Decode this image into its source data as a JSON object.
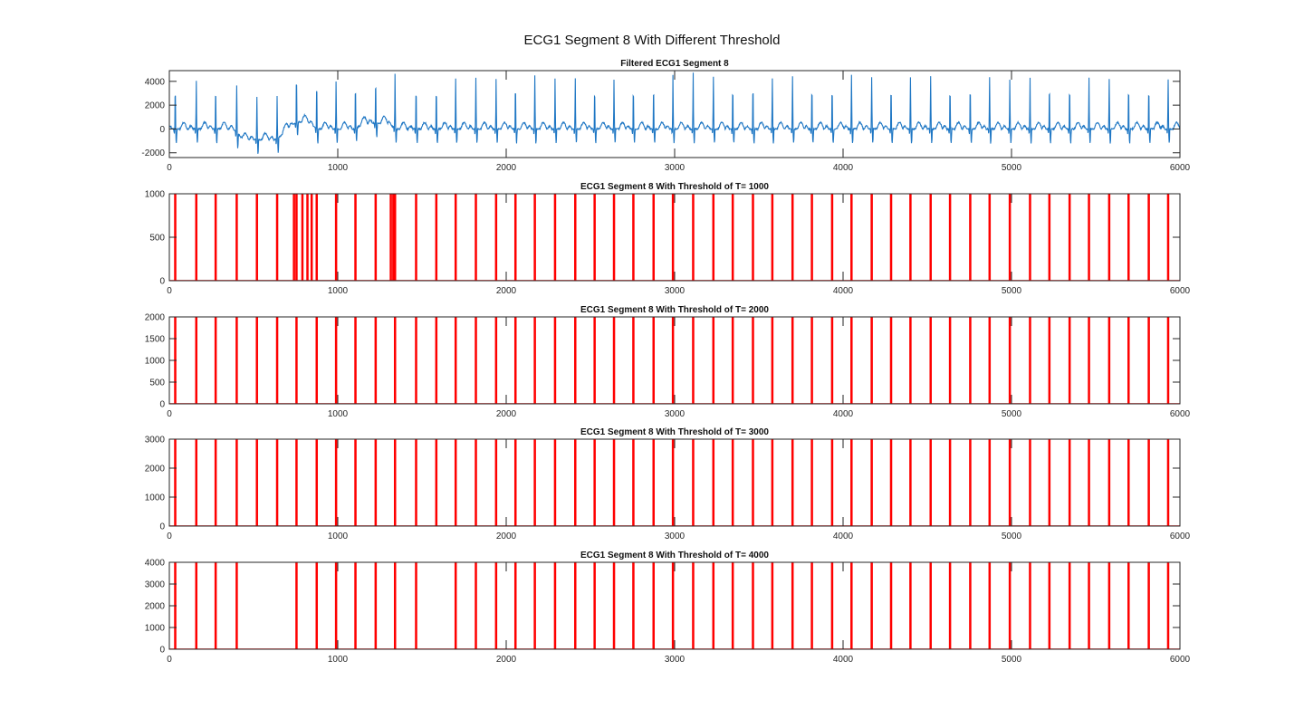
{
  "figure": {
    "title": "ECG1 Segment 8 With Different Threshold",
    "colors": {
      "ecg": "#1f77c4",
      "threshold": "#ff0000",
      "axis": "#262626"
    }
  },
  "chart_data": [
    {
      "type": "line",
      "title": "Filtered ECG1 Segment 8",
      "xlim": [
        0,
        6000
      ],
      "ylim": [
        -2400,
        4900
      ],
      "xticks": [
        0,
        1000,
        2000,
        3000,
        4000,
        5000,
        6000
      ],
      "yticks": [
        -2000,
        0,
        2000,
        4000
      ],
      "series": [
        {
          "color": "#1f77c4",
          "r_peaks_x": [
            35,
            160,
            275,
            400,
            520,
            640,
            755,
            875,
            990,
            1105,
            1225,
            1340,
            1465,
            1585,
            1700,
            1820,
            1940,
            2055,
            2170,
            2290,
            2410,
            2525,
            2640,
            2755,
            2875,
            2990,
            3110,
            3230,
            3345,
            3465,
            3580,
            3700,
            3815,
            3935,
            4050,
            4170,
            4285,
            4400,
            4520,
            4635,
            4755,
            4870,
            4990,
            5110,
            5225,
            5345,
            5460,
            5580,
            5695,
            5815,
            5930
          ],
          "r_peaks_y": [
            4100,
            4000,
            4100,
            4000,
            3600,
            3700,
            4700,
            4600,
            4000,
            4300,
            4300,
            4600,
            4100,
            4100,
            4200,
            4300,
            4200,
            4400,
            4500,
            4200,
            4300,
            4100,
            4200,
            4100,
            4300,
            4600,
            4700,
            4400,
            4200,
            4400,
            4300,
            4400,
            4300,
            4200,
            4500,
            4300,
            4200,
            4300,
            4400,
            4100,
            4300,
            4400,
            4200,
            4300,
            4300,
            4200,
            4300,
            4200,
            4200,
            4100,
            4200
          ],
          "s_wave_y": -1200,
          "t_wave_y": 300,
          "baseline_shift": [
            {
              "x_start": 380,
              "x_end": 700,
              "offset": -900
            },
            {
              "x_start": 700,
              "x_end": 880,
              "offset": 600
            },
            {
              "x_start": 1100,
              "x_end": 1350,
              "offset": 500
            }
          ]
        }
      ]
    },
    {
      "type": "line",
      "title": "ECG1 Segment 8 With Threshold of T= 1000",
      "threshold": 1000,
      "xlim": [
        0,
        6000
      ],
      "ylim": [
        0,
        1000
      ],
      "xticks": [
        0,
        1000,
        2000,
        3000,
        4000,
        5000,
        6000
      ],
      "yticks": [
        0,
        500,
        1000
      ],
      "series": [
        {
          "color": "#ff0000",
          "level": 1000,
          "pulses_x": [
            35,
            160,
            275,
            400,
            520,
            640,
            740,
            755,
            790,
            820,
            845,
            875,
            990,
            1105,
            1225,
            1315,
            1330,
            1340,
            1465,
            1585,
            1700,
            1820,
            1940,
            2055,
            2170,
            2290,
            2410,
            2525,
            2640,
            2755,
            2875,
            2990,
            3110,
            3230,
            3345,
            3465,
            3580,
            3700,
            3815,
            3935,
            4050,
            4170,
            4285,
            4400,
            4520,
            4635,
            4755,
            4870,
            4990,
            5110,
            5225,
            5345,
            5460,
            5580,
            5695,
            5815,
            5930
          ]
        }
      ]
    },
    {
      "type": "line",
      "title": "ECG1 Segment 8 With Threshold of T= 2000",
      "threshold": 2000,
      "xlim": [
        0,
        6000
      ],
      "ylim": [
        0,
        2000
      ],
      "xticks": [
        0,
        1000,
        2000,
        3000,
        4000,
        5000,
        6000
      ],
      "yticks": [
        0,
        500,
        1000,
        1500,
        2000
      ],
      "series": [
        {
          "color": "#ff0000",
          "level": 2000,
          "pulses_x": [
            35,
            160,
            275,
            400,
            520,
            640,
            755,
            875,
            990,
            1105,
            1225,
            1340,
            1465,
            1585,
            1700,
            1820,
            1940,
            2055,
            2170,
            2290,
            2410,
            2525,
            2640,
            2755,
            2875,
            2990,
            3110,
            3230,
            3345,
            3465,
            3580,
            3700,
            3815,
            3935,
            4050,
            4170,
            4285,
            4400,
            4520,
            4635,
            4755,
            4870,
            4990,
            5110,
            5225,
            5345,
            5460,
            5580,
            5695,
            5815,
            5930
          ]
        }
      ]
    },
    {
      "type": "line",
      "title": "ECG1 Segment 8 With Threshold of T= 3000",
      "threshold": 3000,
      "xlim": [
        0,
        6000
      ],
      "ylim": [
        0,
        3000
      ],
      "xticks": [
        0,
        1000,
        2000,
        3000,
        4000,
        5000,
        6000
      ],
      "yticks": [
        0,
        1000,
        2000,
        3000
      ],
      "series": [
        {
          "color": "#ff0000",
          "level": 3000,
          "pulses_x": [
            35,
            160,
            275,
            400,
            520,
            640,
            755,
            875,
            990,
            1105,
            1225,
            1340,
            1465,
            1585,
            1700,
            1820,
            1940,
            2055,
            2170,
            2290,
            2410,
            2525,
            2640,
            2755,
            2875,
            2990,
            3110,
            3230,
            3345,
            3465,
            3580,
            3700,
            3815,
            3935,
            4050,
            4170,
            4285,
            4400,
            4520,
            4635,
            4755,
            4870,
            4990,
            5110,
            5225,
            5345,
            5460,
            5580,
            5695,
            5815,
            5930
          ]
        }
      ]
    },
    {
      "type": "line",
      "title": "ECG1 Segment 8 With Threshold of T= 4000",
      "threshold": 4000,
      "xlim": [
        0,
        6000
      ],
      "ylim": [
        0,
        4000
      ],
      "xticks": [
        0,
        1000,
        2000,
        3000,
        4000,
        5000,
        6000
      ],
      "yticks": [
        0,
        1000,
        2000,
        3000,
        4000
      ],
      "series": [
        {
          "color": "#ff0000",
          "level": 4000,
          "pulses_x": [
            35,
            160,
            275,
            400,
            755,
            875,
            990,
            1105,
            1225,
            1340,
            1465,
            1700,
            1820,
            1940,
            2055,
            2170,
            2290,
            2410,
            2525,
            2640,
            2755,
            2875,
            2990,
            3110,
            3230,
            3345,
            3465,
            3580,
            3700,
            3815,
            3935,
            4050,
            4170,
            4285,
            4400,
            4520,
            4635,
            4755,
            4870,
            4990,
            5110,
            5225,
            5345,
            5460,
            5580,
            5695,
            5815,
            5930
          ]
        }
      ]
    }
  ]
}
